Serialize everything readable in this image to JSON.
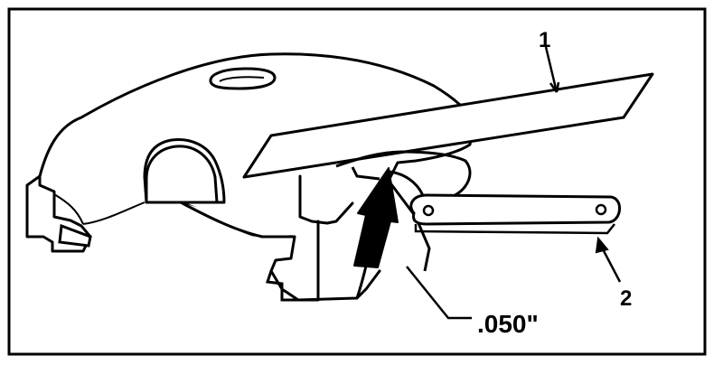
{
  "diagram": {
    "callouts": {
      "straightedge": "1",
      "feeler_gauge": "2"
    },
    "dimension": ".050\""
  },
  "colors": {
    "ink": "#000000",
    "paper": "#ffffff"
  }
}
